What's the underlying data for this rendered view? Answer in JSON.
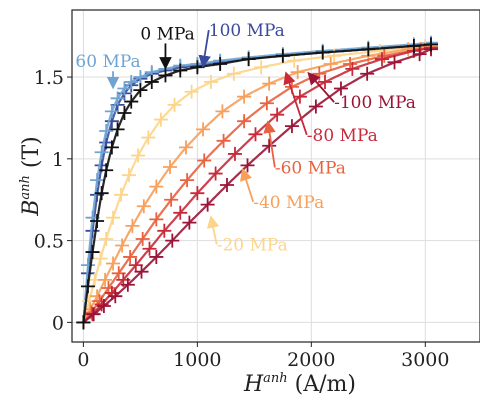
{
  "chart_data": {
    "type": "scatter",
    "title": "",
    "xlabel": {
      "symbol": "H",
      "sup": "anh",
      "unit": " (A/m)"
    },
    "ylabel": {
      "symbol": "B",
      "sup": "anh",
      "unit": " (T)"
    },
    "xlim": [
      -100,
      3480
    ],
    "ylim": [
      -0.12,
      1.91
    ],
    "xticks": [
      0,
      1000,
      2000,
      3000
    ],
    "xtick_labels": [
      "0",
      "1000",
      "2000",
      "3000"
    ],
    "yticks": [
      0,
      0.5,
      1,
      1.5
    ],
    "ytick_labels": [
      "0",
      "0.5",
      "1",
      "1.5"
    ],
    "grid": true,
    "legend": "none",
    "series": [
      {
        "annotation": "100 MPa",
        "color": "#3a4a9c",
        "marker": "+",
        "Hsat": 320,
        "x": [
          0,
          40,
          80,
          120,
          160,
          200,
          250,
          300,
          360,
          420,
          500,
          600,
          720,
          850,
          1000,
          1200,
          1450,
          1750,
          2100,
          2500,
          2900,
          3050
        ],
        "y": [
          0.0,
          0.3,
          0.56,
          0.78,
          0.96,
          1.1,
          1.23,
          1.33,
          1.4,
          1.45,
          1.49,
          1.52,
          1.54,
          1.56,
          1.57,
          1.59,
          1.61,
          1.63,
          1.65,
          1.67,
          1.69,
          1.7
        ]
      },
      {
        "annotation": "60 MPa",
        "color": "#6fa4d2",
        "marker": "+",
        "Hsat": 280,
        "x": [
          0,
          40,
          80,
          120,
          160,
          200,
          250,
          300,
          360,
          420,
          500,
          600,
          720,
          850,
          1000,
          1200,
          1450,
          1750,
          2100,
          2500,
          2900,
          3050
        ],
        "y": [
          0.0,
          0.35,
          0.64,
          0.87,
          1.04,
          1.17,
          1.29,
          1.37,
          1.43,
          1.47,
          1.5,
          1.53,
          1.55,
          1.57,
          1.58,
          1.6,
          1.62,
          1.64,
          1.66,
          1.68,
          1.7,
          1.71
        ]
      },
      {
        "annotation": "0 MPa",
        "color": "#111111",
        "marker": "+",
        "Hsat": 420,
        "x": [
          0,
          40,
          80,
          120,
          160,
          200,
          250,
          300,
          360,
          420,
          500,
          600,
          720,
          850,
          1000,
          1200,
          1450,
          1750,
          2100,
          2500,
          2900,
          3050
        ],
        "y": [
          0.0,
          0.22,
          0.43,
          0.62,
          0.79,
          0.93,
          1.07,
          1.18,
          1.28,
          1.35,
          1.42,
          1.47,
          1.51,
          1.54,
          1.56,
          1.58,
          1.61,
          1.63,
          1.65,
          1.67,
          1.69,
          1.7
        ]
      },
      {
        "annotation": "-20 MPa",
        "color": "#fdd58a",
        "marker": "+",
        "Hsat": 620,
        "x": [
          0,
          50,
          100,
          150,
          200,
          260,
          330,
          400,
          480,
          570,
          680,
          800,
          950,
          1120,
          1320,
          1560,
          1850,
          2200,
          2600,
          3000
        ],
        "y": [
          0.0,
          0.13,
          0.26,
          0.39,
          0.51,
          0.64,
          0.78,
          0.9,
          1.02,
          1.13,
          1.24,
          1.33,
          1.41,
          1.47,
          1.52,
          1.56,
          1.6,
          1.63,
          1.66,
          1.69
        ]
      },
      {
        "annotation": "-40 MPa",
        "color": "#f6a05c",
        "marker": "+",
        "Hsat": 860,
        "x": [
          0,
          60,
          120,
          190,
          260,
          340,
          430,
          530,
          640,
          760,
          900,
          1050,
          1220,
          1410,
          1630,
          1880,
          2170,
          2500,
          2850,
          3050
        ],
        "y": [
          0.0,
          0.08,
          0.16,
          0.26,
          0.36,
          0.47,
          0.59,
          0.71,
          0.83,
          0.95,
          1.07,
          1.18,
          1.29,
          1.38,
          1.46,
          1.53,
          1.58,
          1.63,
          1.67,
          1.69
        ]
      },
      {
        "annotation": "-60 MPa",
        "color": "#e8623f",
        "marker": "+",
        "Hsat": 1100,
        "x": [
          0,
          70,
          140,
          220,
          310,
          410,
          520,
          640,
          770,
          910,
          1060,
          1230,
          1410,
          1610,
          1830,
          2070,
          2340,
          2640,
          2960,
          3050
        ],
        "y": [
          0.0,
          0.06,
          0.13,
          0.21,
          0.3,
          0.4,
          0.51,
          0.63,
          0.75,
          0.87,
          0.99,
          1.11,
          1.23,
          1.34,
          1.44,
          1.52,
          1.58,
          1.63,
          1.67,
          1.68
        ]
      },
      {
        "annotation": "-80 MPa",
        "color": "#c82a3a",
        "marker": "+",
        "Hsat": 1350,
        "x": [
          0,
          80,
          160,
          250,
          350,
          460,
          580,
          710,
          850,
          1000,
          1160,
          1330,
          1510,
          1700,
          1900,
          2120,
          2360,
          2620,
          2900,
          3050
        ],
        "y": [
          0.0,
          0.05,
          0.11,
          0.18,
          0.26,
          0.35,
          0.45,
          0.56,
          0.67,
          0.79,
          0.91,
          1.03,
          1.15,
          1.27,
          1.38,
          1.47,
          1.55,
          1.61,
          1.66,
          1.68
        ]
      },
      {
        "annotation": "-100 MPa",
        "color": "#9b1437",
        "marker": "+",
        "Hsat": 1600,
        "x": [
          0,
          90,
          180,
          280,
          390,
          510,
          640,
          780,
          930,
          1090,
          1260,
          1440,
          1630,
          1830,
          2040,
          2260,
          2490,
          2730,
          2950,
          3050
        ],
        "y": [
          0.0,
          0.05,
          0.1,
          0.16,
          0.23,
          0.31,
          0.4,
          0.5,
          0.61,
          0.72,
          0.84,
          0.96,
          1.08,
          1.2,
          1.32,
          1.43,
          1.52,
          1.59,
          1.64,
          1.67
        ]
      }
    ],
    "annotations": [
      {
        "text": "0 MPa",
        "color": "#111111",
        "text_at": [
          500,
          1.73
        ],
        "arrow_to": [
          720,
          1.56
        ]
      },
      {
        "text": "100 MPa",
        "color": "#3a4a9c",
        "text_at": [
          1100,
          1.75
        ],
        "arrow_to": [
          1050,
          1.57
        ]
      },
      {
        "text": "60 MPa",
        "color": "#6fa4d2",
        "text_at": [
          -70,
          1.56
        ],
        "arrow_to": [
          260,
          1.44
        ]
      },
      {
        "text": "-100 MPa",
        "color": "#9b1437",
        "text_at": [
          2200,
          1.31
        ],
        "arrow_to": [
          1980,
          1.52
        ]
      },
      {
        "text": "-80 MPa",
        "color": "#c82a3a",
        "text_at": [
          1960,
          1.11
        ],
        "arrow_to": [
          1780,
          1.52
        ]
      },
      {
        "text": "-60 MPa",
        "color": "#e8623f",
        "text_at": [
          1680,
          0.91
        ],
        "arrow_to": [
          1620,
          1.22
        ]
      },
      {
        "text": "-40 MPa",
        "color": "#f6a05c",
        "text_at": [
          1490,
          0.7
        ],
        "arrow_to": [
          1400,
          0.93
        ]
      },
      {
        "text": "-20 MPa",
        "color": "#fdd58a",
        "text_at": [
          1170,
          0.44
        ],
        "arrow_to": [
          1120,
          0.64
        ]
      }
    ]
  }
}
